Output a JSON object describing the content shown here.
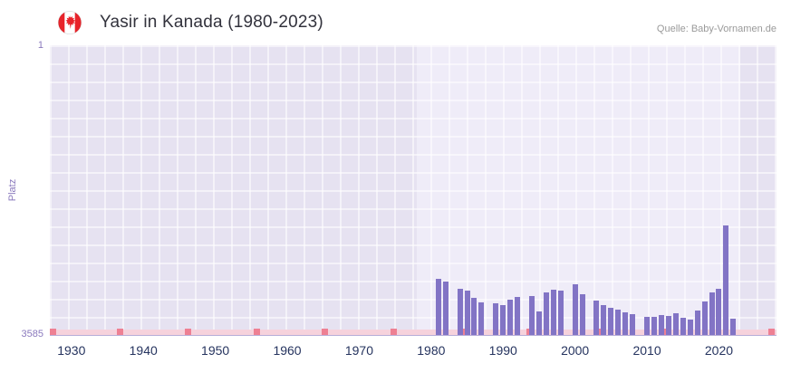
{
  "header": {
    "title": "Yasir in Kanada (1980-2023)",
    "flag_icon": "canada-flag",
    "source": "Quelle: Baby-Vornamen.de"
  },
  "colors": {
    "bar": "#8274c5",
    "plot_bg": "#e6e2f1",
    "band_bg": "#efecf8",
    "y_label": "#8a79bd",
    "x_label": "#26345f",
    "title": "#32323c",
    "source": "#9a9a9a",
    "strip": "#f6d2dc",
    "accent": "#ee8093",
    "axis_line": "#b7aed8"
  },
  "chart_data": {
    "type": "bar",
    "title": "Yasir in Kanada (1980-2023)",
    "ylabel": "Platz",
    "y_axis": {
      "inverted": true,
      "min": 1,
      "max": 3585,
      "top_label": "1",
      "bottom_label": "3585"
    },
    "x_axis": {
      "min": 1927,
      "max": 2028,
      "ticks": [
        1930,
        1940,
        1950,
        1960,
        1970,
        1980,
        1990,
        2000,
        2010,
        2020
      ]
    },
    "plot_band": {
      "from": 1978,
      "to": 2023
    },
    "series": [
      {
        "name": "Platz",
        "years": [
          1980,
          1981,
          1982,
          1983,
          1984,
          1985,
          1986,
          1987,
          1988,
          1989,
          1990,
          1991,
          1992,
          1993,
          1994,
          1995,
          1996,
          1997,
          1998,
          1999,
          2000,
          2001,
          2002,
          2003,
          2004,
          2005,
          2006,
          2007,
          2008,
          2009,
          2010,
          2011,
          2012,
          2013,
          2014,
          2015,
          2016,
          2017,
          2018,
          2019,
          2020,
          2021,
          2022,
          2023
        ],
        "ranks": [
          null,
          2890,
          2920,
          null,
          3010,
          3040,
          3130,
          3180,
          null,
          3190,
          3210,
          3150,
          3120,
          null,
          3100,
          3290,
          3060,
          3030,
          3040,
          null,
          2960,
          3080,
          null,
          3160,
          3210,
          3250,
          3270,
          3300,
          3330,
          null,
          3360,
          3360,
          3340,
          3350,
          3320,
          3370,
          3400,
          3280,
          3170,
          3060,
          3010,
          2230,
          3380,
          null
        ]
      }
    ],
    "baseline_markers": {
      "strip_full_width": true,
      "accent_positions_pct": [
        0.4,
        9.6,
        19.0,
        28.4,
        37.8,
        47.2,
        56.6,
        66.0,
        75.4,
        84.8,
        99.3
      ]
    },
    "grid": true,
    "legend": false
  }
}
